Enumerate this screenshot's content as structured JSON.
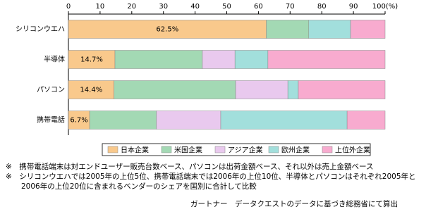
{
  "chart_data": {
    "type": "stacked-barh",
    "categories": [
      "シリコンウエハ",
      "半導体",
      "パソコン",
      "携帯電話"
    ],
    "series": [
      {
        "name": "日本企業",
        "color": "#f9c98c",
        "values": [
          62.5,
          14.7,
          14.4,
          6.7
        ],
        "value_labels": [
          "62.5%",
          "14.7%",
          "14.4%",
          "6.7%"
        ]
      },
      {
        "name": "米国企業",
        "color": "#a3d9b4",
        "values": [
          13.4,
          27.6,
          38.4,
          21.1
        ]
      },
      {
        "name": "アジア企業",
        "color": "#e9c9ee",
        "values": [
          0,
          10.3,
          16.5,
          20.3
        ]
      },
      {
        "name": "欧州企業",
        "color": "#a2dfdc",
        "values": [
          13.2,
          10.4,
          3.3,
          39.9
        ]
      },
      {
        "name": "上位外企業",
        "color": "#f8abcf",
        "values": [
          10.9,
          37.0,
          27.4,
          12.0
        ]
      }
    ],
    "xlim": [
      0,
      100
    ],
    "xticks": [
      0,
      10,
      20,
      30,
      40,
      50,
      60,
      70,
      80,
      90,
      {
        "value": 100,
        "label": "100(%)"
      }
    ],
    "notes": [
      "※　携帯電話端末は対エンドユーザー販売台数ベース、パソコンは出荷金額ベース、それ以外は売上金額ベース",
      "※　シリコンウエハでは2005年の上位5位、携帯電話端末では2006年の上位10位、半導体とパソコンはそれぞれ2005年と2006年の上位20位に含まれるベンダーのシェアを国別に合計して比較"
    ],
    "source": "ガートナー　データクエストのデータに基づき総務省にて算出"
  }
}
